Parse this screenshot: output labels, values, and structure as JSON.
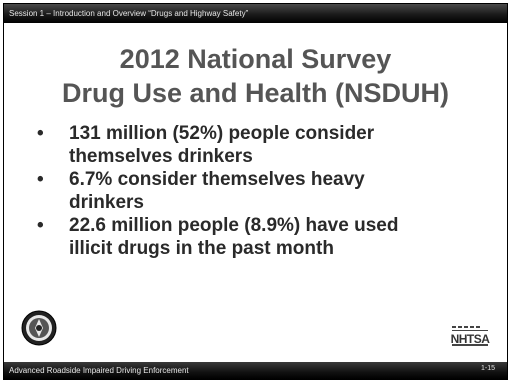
{
  "header": {
    "session_text": "Session 1 – Introduction and Overview  “Drugs and Highway Safety”"
  },
  "slide": {
    "title_line1": "2012 National Survey",
    "title_line2": "Drug Use and Health (NSDUH)",
    "bullets": [
      {
        "line1": "131 million (52%) people consider",
        "line2": "themselves drinkers"
      },
      {
        "line1": "6.7% consider themselves heavy",
        "line2": "drinkers"
      },
      {
        "line1": "22.6 million people (8.9%) have used",
        "line2": "illicit drugs in the past month"
      }
    ],
    "bullet_symbol": "•"
  },
  "logos": {
    "seal_icon": "dot-seal-icon",
    "nhtsa_logo_text": "NHTSA"
  },
  "footer": {
    "program_text": "Advanced Roadside Impaired Driving Enforcement",
    "page_number": "1-15"
  }
}
